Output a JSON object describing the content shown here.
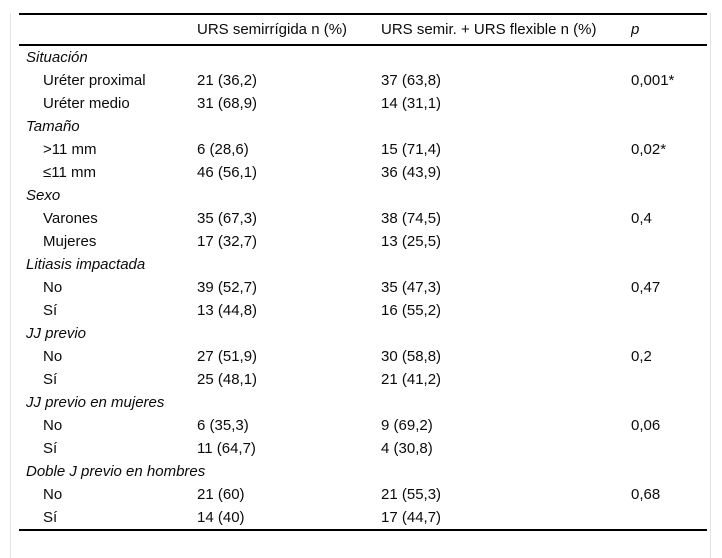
{
  "table": {
    "columns": [
      "",
      "URS semirrígida n (%)",
      "URS semir. + URS flexible n (%)",
      "p"
    ],
    "sections": [
      {
        "label": "Situación",
        "rows": [
          {
            "label": "Uréter proximal",
            "urs_semirrigida": "21 (36,2)",
            "urs_combinada": "37 (63,8)",
            "p": "0,001*"
          },
          {
            "label": "Uréter medio",
            "urs_semirrigida": "31 (68,9)",
            "urs_combinada": "14 (31,1)",
            "p": ""
          }
        ]
      },
      {
        "label": "Tamaño",
        "rows": [
          {
            "label": ">11 mm",
            "urs_semirrigida": "6 (28,6)",
            "urs_combinada": "15 (71,4)",
            "p": "0,02*"
          },
          {
            "label": "≤11 mm",
            "urs_semirrigida": "46 (56,1)",
            "urs_combinada": "36 (43,9)",
            "p": ""
          }
        ]
      },
      {
        "label": "Sexo",
        "rows": [
          {
            "label": "Varones",
            "urs_semirrigida": "35 (67,3)",
            "urs_combinada": "38 (74,5)",
            "p": "0,4"
          },
          {
            "label": "Mujeres",
            "urs_semirrigida": "17 (32,7)",
            "urs_combinada": "13 (25,5)",
            "p": ""
          }
        ]
      },
      {
        "label": "Litiasis impactada",
        "rows": [
          {
            "label": "No",
            "urs_semirrigida": "39 (52,7)",
            "urs_combinada": "35 (47,3)",
            "p": "0,47"
          },
          {
            "label": "Sí",
            "urs_semirrigida": "13 (44,8)",
            "urs_combinada": "16 (55,2)",
            "p": ""
          }
        ]
      },
      {
        "label": "JJ previo",
        "rows": [
          {
            "label": "No",
            "urs_semirrigida": "27 (51,9)",
            "urs_combinada": "30 (58,8)",
            "p": "0,2"
          },
          {
            "label": "Sí",
            "urs_semirrigida": "25 (48,1)",
            "urs_combinada": "21 (41,2)",
            "p": ""
          }
        ]
      },
      {
        "label": "JJ previo en mujeres",
        "rows": [
          {
            "label": "No",
            "urs_semirrigida": "6 (35,3)",
            "urs_combinada": "9 (69,2)",
            "p": "0,06"
          },
          {
            "label": "Sí",
            "urs_semirrigida": "11 (64,7)",
            "urs_combinada": "4 (30,8)",
            "p": ""
          }
        ]
      },
      {
        "label": "Doble J previo en hombres",
        "rows": [
          {
            "label": "No",
            "urs_semirrigida": "21 (60)",
            "urs_combinada": "21 (55,3)",
            "p": "0,68"
          },
          {
            "label": "Sí",
            "urs_semirrigida": "14 (40)",
            "urs_combinada": "17 (44,7)",
            "p": ""
          }
        ]
      }
    ]
  }
}
